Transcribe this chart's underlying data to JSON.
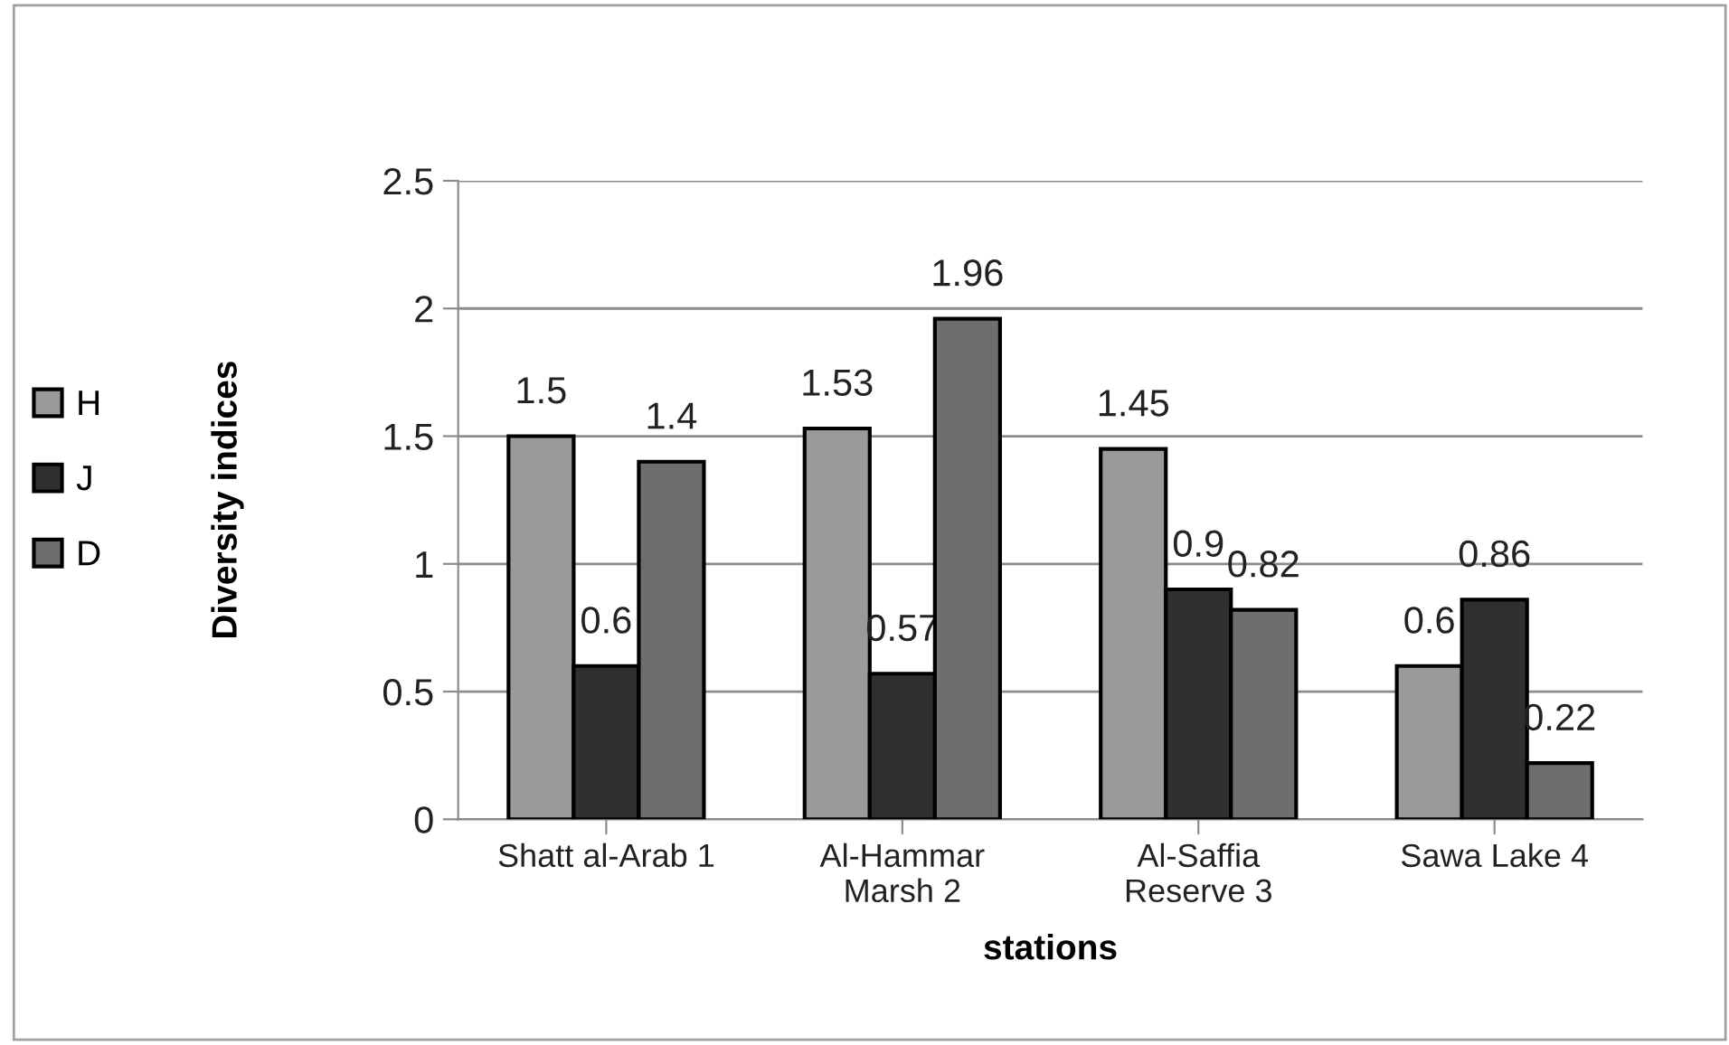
{
  "chart_data": {
    "type": "bar",
    "xlabel": "stations",
    "ylabel": "Diversity indices",
    "categories": [
      "Shatt al-Arab 1",
      "Al-Hammar\nMarsh 2",
      "Al-Saffia\nReserve 3",
      "Sawa Lake 4"
    ],
    "series": [
      {
        "name": "H",
        "color": "#9a9a9a",
        "values": [
          1.5,
          1.53,
          1.45,
          0.6
        ]
      },
      {
        "name": "J",
        "color": "#303030",
        "values": [
          0.6,
          0.57,
          0.9,
          0.86
        ]
      },
      {
        "name": "D",
        "color": "#6e6e6e",
        "values": [
          1.4,
          1.96,
          0.82,
          0.22
        ]
      }
    ],
    "ylim": [
      0,
      2.5
    ],
    "yticks": [
      0,
      0.5,
      1,
      1.5,
      2,
      2.5
    ],
    "grid": "y",
    "legend": "left",
    "data_labels": true
  }
}
